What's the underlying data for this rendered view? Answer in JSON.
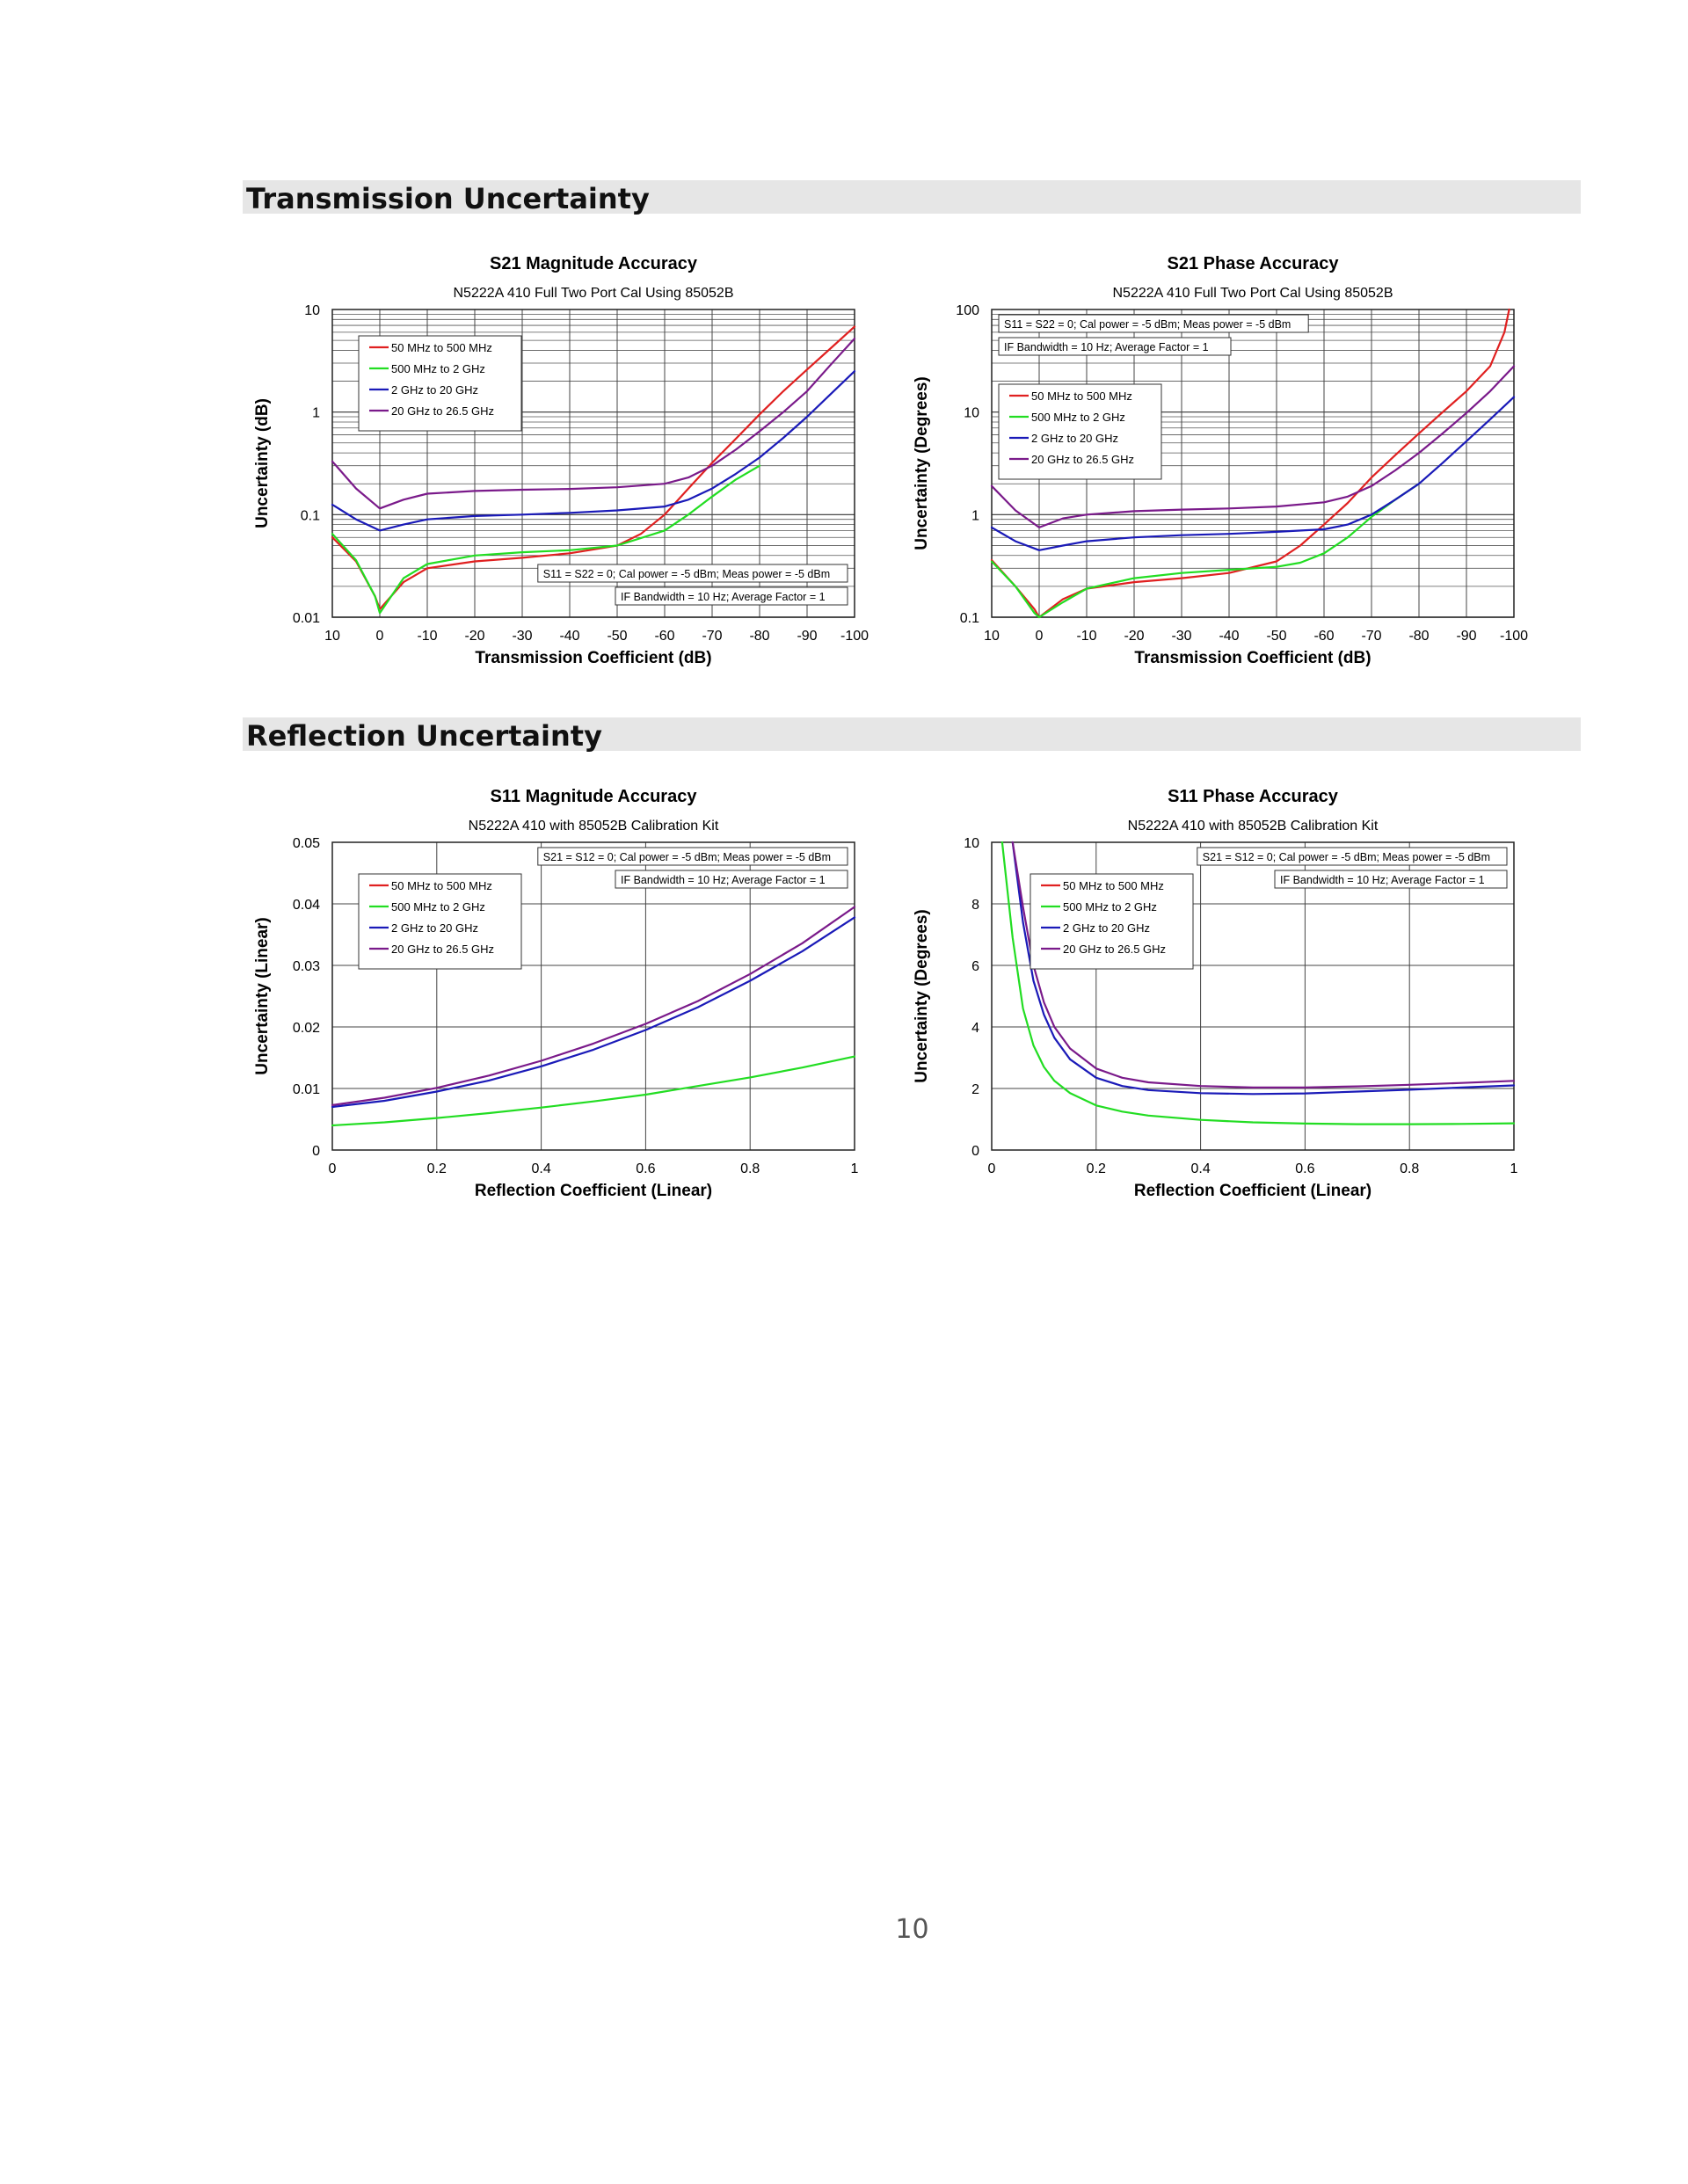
{
  "page": {
    "page_number": "10"
  },
  "sections": [
    {
      "title": "Transmission Uncertainty"
    },
    {
      "title": "Reflection Uncertainty"
    }
  ],
  "colors": {
    "red": "#e02020",
    "green": "#22dd22",
    "blue": "#1a1ab8",
    "purple": "#7a1a8a"
  },
  "chart_data": [
    {
      "id": "s21-mag",
      "type": "line",
      "title": "S21 Magnitude Accuracy",
      "subtitle": "N5222A 410 Full Two Port Cal Using 85052B",
      "xlabel": "Transmission Coefficient (dB)",
      "ylabel": "Uncertainty (dB)",
      "x_scale": "linear",
      "y_scale": "log",
      "xlim": [
        10,
        -100
      ],
      "ylim": [
        0.01,
        10
      ],
      "xticks": [
        10,
        0,
        -10,
        -20,
        -30,
        -40,
        -50,
        -60,
        -70,
        -80,
        -90,
        -100
      ],
      "xtick_labels": [
        "10",
        "0",
        "-10",
        "-20",
        "-30",
        "-40",
        "-50",
        "-60",
        "-70",
        "-80",
        "-90",
        "-100"
      ],
      "yticks": [
        0.01,
        0.1,
        1,
        10
      ],
      "ytick_labels": [
        "0.01",
        "0.1",
        "1",
        "10"
      ],
      "grid": true,
      "legend_position": "top-left",
      "notes_position": "bottom-right",
      "notes": [
        "S11 = S22 = 0; Cal power = -5 dBm; Meas power = -5 dBm",
        "IF Bandwidth = 10 Hz; Average Factor = 1"
      ],
      "series": [
        {
          "name": "50 MHz to 500 MHz",
          "color": "#e02020",
          "x": [
            10,
            5,
            1,
            0,
            -5,
            -10,
            -20,
            -30,
            -40,
            -50,
            -55,
            -60,
            -65,
            -70,
            -75,
            -80,
            -85,
            -90,
            -95,
            -100
          ],
          "y": [
            0.06,
            0.035,
            0.016,
            0.012,
            0.022,
            0.03,
            0.035,
            0.038,
            0.042,
            0.05,
            0.065,
            0.1,
            0.18,
            0.32,
            0.55,
            0.95,
            1.6,
            2.6,
            4.2,
            6.8
          ]
        },
        {
          "name": "500 MHz to 2 GHz",
          "color": "#22dd22",
          "x": [
            10,
            5,
            1,
            0,
            -5,
            -10,
            -20,
            -30,
            -40,
            -50,
            -60,
            -65,
            -70,
            -75,
            -80
          ],
          "y": [
            0.065,
            0.036,
            0.016,
            0.011,
            0.024,
            0.033,
            0.04,
            0.043,
            0.045,
            0.05,
            0.07,
            0.1,
            0.15,
            0.22,
            0.3
          ]
        },
        {
          "name": "2 GHz to 20 GHz",
          "color": "#1a1ab8",
          "x": [
            10,
            5,
            0,
            -5,
            -10,
            -20,
            -30,
            -40,
            -50,
            -60,
            -65,
            -70,
            -75,
            -80,
            -85,
            -90,
            -95,
            -100
          ],
          "y": [
            0.125,
            0.09,
            0.07,
            0.08,
            0.09,
            0.097,
            0.1,
            0.104,
            0.11,
            0.12,
            0.14,
            0.18,
            0.25,
            0.36,
            0.56,
            0.9,
            1.5,
            2.5
          ]
        },
        {
          "name": "20 GHz to 26.5 GHz",
          "color": "#7a1a8a",
          "x": [
            10,
            5,
            0,
            -5,
            -10,
            -20,
            -30,
            -40,
            -50,
            -60,
            -65,
            -70,
            -75,
            -80,
            -85,
            -90,
            -95,
            -100
          ],
          "y": [
            0.33,
            0.18,
            0.115,
            0.14,
            0.16,
            0.17,
            0.175,
            0.178,
            0.185,
            0.2,
            0.23,
            0.3,
            0.43,
            0.65,
            1.0,
            1.6,
            2.9,
            5.2
          ]
        }
      ]
    },
    {
      "id": "s21-phase",
      "type": "line",
      "title": "S21 Phase Accuracy",
      "subtitle": "N5222A 410 Full Two Port Cal Using 85052B",
      "xlabel": "Transmission Coefficient (dB)",
      "ylabel": "Uncertainty (Degrees)",
      "x_scale": "linear",
      "y_scale": "log",
      "xlim": [
        10,
        -100
      ],
      "ylim": [
        0.1,
        100
      ],
      "xticks": [
        10,
        0,
        -10,
        -20,
        -30,
        -40,
        -50,
        -60,
        -70,
        -80,
        -90,
        -100
      ],
      "xtick_labels": [
        "10",
        "0",
        "-10",
        "-20",
        "-30",
        "-40",
        "-50",
        "-60",
        "-70",
        "-80",
        "-90",
        "-100"
      ],
      "yticks": [
        0.1,
        1,
        10,
        100
      ],
      "ytick_labels": [
        "0.1",
        "1",
        "10",
        "100"
      ],
      "grid": true,
      "legend_position": "top-left",
      "notes_position": "top-left",
      "notes": [
        "S11 = S22 = 0; Cal power = -5 dBm; Meas power = -5 dBm",
        "IF Bandwidth = 10 Hz; Average Factor = 1"
      ],
      "series": [
        {
          "name": "50 MHz to 500 MHz",
          "color": "#e02020",
          "x": [
            10,
            5,
            1,
            0,
            -5,
            -10,
            -20,
            -30,
            -40,
            -50,
            -55,
            -60,
            -65,
            -70,
            -75,
            -80,
            -85,
            -90,
            -95,
            -98,
            -99
          ],
          "y": [
            0.36,
            0.2,
            0.12,
            0.09,
            0.15,
            0.19,
            0.22,
            0.24,
            0.27,
            0.35,
            0.5,
            0.8,
            1.3,
            2.3,
            3.8,
            6.2,
            10,
            16,
            28,
            60,
            100
          ]
        },
        {
          "name": "500 MHz to 2 GHz",
          "color": "#22dd22",
          "x": [
            10,
            5,
            1,
            0,
            -5,
            -10,
            -20,
            -30,
            -40,
            -50,
            -55,
            -60,
            -65,
            -70,
            -75,
            -80
          ],
          "y": [
            0.35,
            0.2,
            0.11,
            0.09,
            0.14,
            0.19,
            0.24,
            0.27,
            0.29,
            0.31,
            0.34,
            0.42,
            0.6,
            0.95,
            1.4,
            2.0
          ]
        },
        {
          "name": "2 GHz to 20 GHz",
          "color": "#1a1ab8",
          "x": [
            10,
            5,
            0,
            -5,
            -10,
            -20,
            -30,
            -40,
            -50,
            -60,
            -65,
            -70,
            -75,
            -80,
            -85,
            -90,
            -95,
            -100
          ],
          "y": [
            0.75,
            0.55,
            0.45,
            0.5,
            0.55,
            0.6,
            0.63,
            0.65,
            0.68,
            0.72,
            0.8,
            1.0,
            1.4,
            2.0,
            3.2,
            5.2,
            8.5,
            14
          ]
        },
        {
          "name": "20 GHz to 26.5 GHz",
          "color": "#7a1a8a",
          "x": [
            10,
            5,
            0,
            -5,
            -10,
            -20,
            -30,
            -40,
            -50,
            -60,
            -65,
            -70,
            -75,
            -80,
            -85,
            -90,
            -95,
            -100
          ],
          "y": [
            1.9,
            1.1,
            0.75,
            0.92,
            1.0,
            1.08,
            1.12,
            1.15,
            1.2,
            1.32,
            1.5,
            1.9,
            2.7,
            4.0,
            6.2,
            9.8,
            16,
            28
          ]
        }
      ]
    },
    {
      "id": "s11-mag",
      "type": "line",
      "title": "S11 Magnitude Accuracy",
      "subtitle": "N5222A 410 with 85052B Calibration Kit",
      "xlabel": "Reflection Coefficient (Linear)",
      "ylabel": "Uncertainty (Linear)",
      "x_scale": "linear",
      "y_scale": "linear",
      "xlim": [
        0,
        1
      ],
      "ylim": [
        0,
        0.05
      ],
      "xticks": [
        0,
        0.2,
        0.4,
        0.6,
        0.8,
        1
      ],
      "xtick_labels": [
        "0",
        "0.2",
        "0.4",
        "0.6",
        "0.8",
        "1"
      ],
      "yticks": [
        0,
        0.01,
        0.02,
        0.03,
        0.04,
        0.05
      ],
      "ytick_labels": [
        "0",
        "0.01",
        "0.02",
        "0.03",
        "0.04",
        "0.05"
      ],
      "grid": true,
      "legend_position": "top-left",
      "notes_position": "top-right",
      "notes": [
        "S21 = S12 = 0; Cal power = -5 dBm; Meas power = -5 dBm",
        "IF Bandwidth = 10 Hz; Average Factor = 1"
      ],
      "series": [
        {
          "name": "50 MHz to 500 MHz",
          "color": "#e02020",
          "x": [],
          "y": []
        },
        {
          "name": "500 MHz to 2 GHz",
          "color": "#22dd22",
          "x": [
            0,
            0.1,
            0.2,
            0.3,
            0.4,
            0.5,
            0.6,
            0.7,
            0.8,
            0.9,
            1.0
          ],
          "y": [
            0.004,
            0.0045,
            0.0052,
            0.006,
            0.0069,
            0.0079,
            0.009,
            0.0104,
            0.0118,
            0.0134,
            0.0152
          ]
        },
        {
          "name": "2 GHz to 20 GHz",
          "color": "#1a1ab8",
          "x": [
            0,
            0.1,
            0.2,
            0.3,
            0.4,
            0.5,
            0.6,
            0.7,
            0.8,
            0.9,
            1.0
          ],
          "y": [
            0.007,
            0.008,
            0.0095,
            0.0113,
            0.0136,
            0.0163,
            0.0195,
            0.0232,
            0.0275,
            0.0323,
            0.0378
          ]
        },
        {
          "name": "20 GHz to 26.5 GHz",
          "color": "#7a1a8a",
          "x": [
            0,
            0.1,
            0.2,
            0.3,
            0.4,
            0.5,
            0.6,
            0.7,
            0.8,
            0.9,
            1.0
          ],
          "y": [
            0.0073,
            0.0085,
            0.0101,
            0.0121,
            0.0145,
            0.0173,
            0.0205,
            0.0242,
            0.0286,
            0.0336,
            0.0395
          ]
        }
      ]
    },
    {
      "id": "s11-phase",
      "type": "line",
      "title": "S11 Phase Accuracy",
      "subtitle": "N5222A 410 with 85052B Calibration Kit",
      "xlabel": "Reflection Coefficient (Linear)",
      "ylabel": "Uncertainty (Degrees)",
      "x_scale": "linear",
      "y_scale": "linear",
      "xlim": [
        0,
        1
      ],
      "ylim": [
        0,
        10
      ],
      "xticks": [
        0,
        0.2,
        0.4,
        0.6,
        0.8,
        1
      ],
      "xtick_labels": [
        "0",
        "0.2",
        "0.4",
        "0.6",
        "0.8",
        "1"
      ],
      "yticks": [
        0,
        2,
        4,
        6,
        8,
        10
      ],
      "ytick_labels": [
        "0",
        "2",
        "4",
        "6",
        "8",
        "10"
      ],
      "grid": true,
      "legend_position": "top-left",
      "notes_position": "top-right",
      "notes": [
        "S21 = S12 = 0; Cal power = -5 dBm; Meas power = -5 dBm",
        "IF Bandwidth = 10 Hz; Average Factor = 1"
      ],
      "series": [
        {
          "name": "50 MHz to 500 MHz",
          "color": "#e02020",
          "x": [],
          "y": []
        },
        {
          "name": "500 MHz to 2 GHz",
          "color": "#22dd22",
          "x": [
            0.02,
            0.04,
            0.06,
            0.08,
            0.1,
            0.12,
            0.15,
            0.2,
            0.25,
            0.3,
            0.4,
            0.5,
            0.6,
            0.7,
            0.8,
            0.9,
            1.0
          ],
          "y": [
            10,
            6.9,
            4.6,
            3.4,
            2.7,
            2.25,
            1.85,
            1.45,
            1.25,
            1.12,
            0.98,
            0.9,
            0.86,
            0.84,
            0.84,
            0.85,
            0.87
          ]
        },
        {
          "name": "2 GHz to 20 GHz",
          "color": "#1a1ab8",
          "x": [
            0.04,
            0.06,
            0.08,
            0.1,
            0.12,
            0.15,
            0.2,
            0.25,
            0.3,
            0.4,
            0.5,
            0.6,
            0.7,
            0.8,
            0.9,
            1.0
          ],
          "y": [
            10,
            7.4,
            5.5,
            4.4,
            3.65,
            2.95,
            2.35,
            2.08,
            1.95,
            1.85,
            1.82,
            1.84,
            1.9,
            1.96,
            2.03,
            2.1
          ]
        },
        {
          "name": "20 GHz to 26.5 GHz",
          "color": "#7a1a8a",
          "x": [
            0.04,
            0.06,
            0.08,
            0.1,
            0.12,
            0.15,
            0.2,
            0.25,
            0.3,
            0.4,
            0.5,
            0.6,
            0.7,
            0.8,
            0.9,
            1.0
          ],
          "y": [
            10,
            7.9,
            6.0,
            4.8,
            4.0,
            3.3,
            2.65,
            2.35,
            2.2,
            2.08,
            2.03,
            2.03,
            2.07,
            2.12,
            2.18,
            2.25
          ]
        }
      ]
    }
  ]
}
